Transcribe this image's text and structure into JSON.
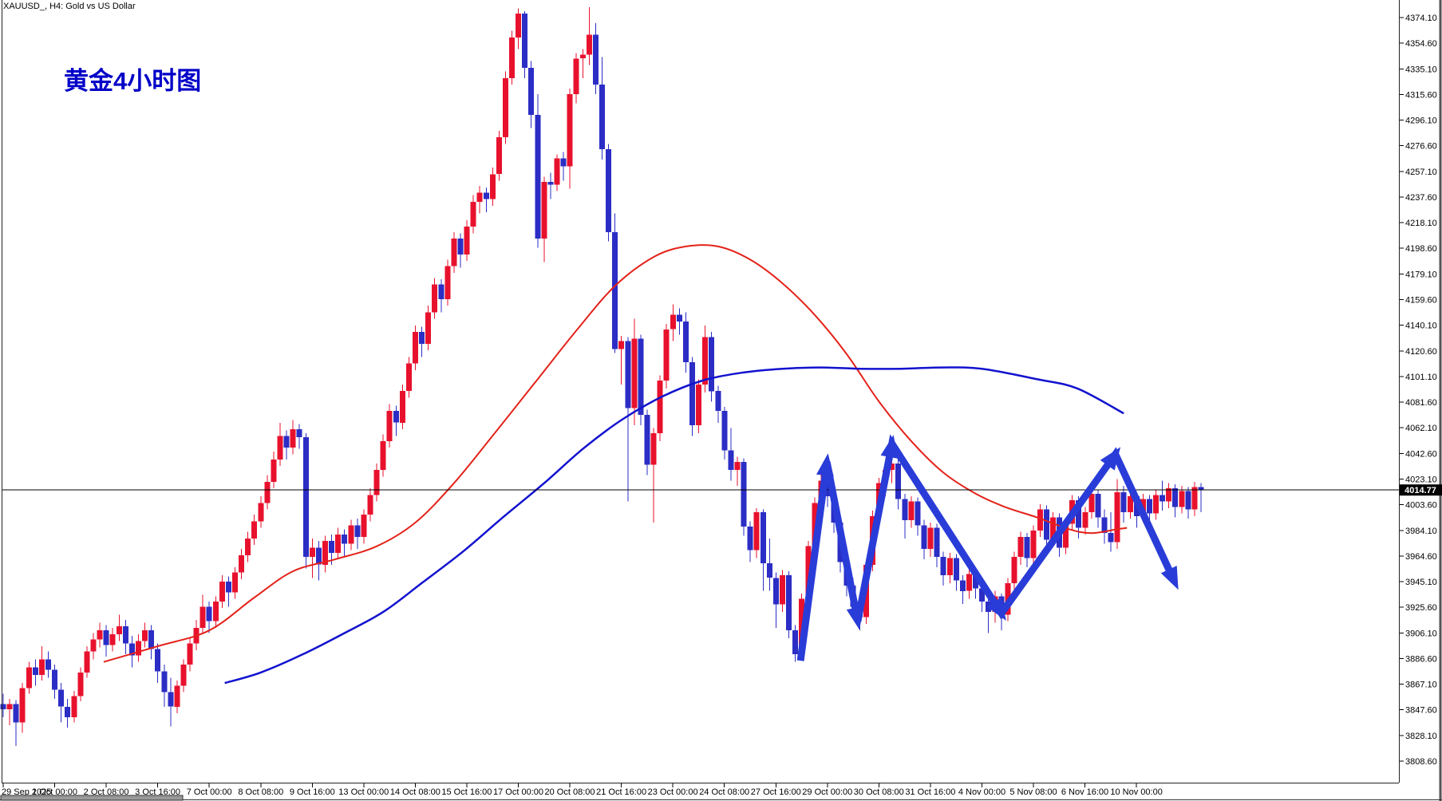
{
  "window": {
    "title": "XAUUSD_, H4:  Gold vs US Dollar",
    "annotation": "黄金4小时图",
    "bid_price": "4014.77"
  },
  "colors": {
    "background": "#ffffff",
    "bull_candle_red": "#e8112d",
    "bear_candle_blue": "#2b2dc5",
    "ma_fast_red": "#e32219",
    "ma_slow_blue": "#1212cf",
    "arrow_blue": "#2a3cd8",
    "axis_text": "#000000",
    "annotation_blue": "#0000c8",
    "bid_line": "#000000",
    "bid_tag_bg": "#000000",
    "bid_tag_text": "#ffffff",
    "border": "#222222",
    "scrollbar_thumb": "#9a9a9a"
  },
  "chart_data": {
    "type": "candlestick",
    "symbol": "XAUUSD_",
    "timeframe": "H4",
    "title": "XAUUSD_, H4:  Gold vs US Dollar",
    "grid": false,
    "legend_position": "none",
    "current_price": 4014.77,
    "y_axis": {
      "min": 3808.6,
      "max": 4374.1,
      "step": 19.5,
      "labels": [
        "4374.10",
        "4354.60",
        "4335.10",
        "4315.60",
        "4296.10",
        "4276.60",
        "4257.10",
        "4237.60",
        "4218.10",
        "4198.60",
        "4179.10",
        "4159.60",
        "4140.10",
        "4120.60",
        "4101.10",
        "4081.60",
        "4062.10",
        "4042.60",
        "4023.10",
        "4003.60",
        "3984.10",
        "3964.60",
        "3945.10",
        "3925.60",
        "3906.10",
        "3886.60",
        "3867.10",
        "3847.60",
        "3828.10",
        "3808.60"
      ]
    },
    "x_axis": {
      "bars_per_label": 8,
      "labels": [
        "29 Sep 2025",
        "1 Oct 00:00",
        "2 Oct 08:00",
        "3 Oct 16:00",
        "7 Oct 00:00",
        "8 Oct 08:00",
        "9 Oct 16:00",
        "13 Oct 00:00",
        "14 Oct 08:00",
        "15 Oct 16:00",
        "17 Oct 00:00",
        "20 Oct 08:00",
        "21 Oct 16:00",
        "23 Oct 00:00",
        "24 Oct 08:00",
        "27 Oct 16:00",
        "29 Oct 00:00",
        "30 Oct 08:00",
        "31 Oct 16:00",
        "4 Nov 00:00",
        "5 Nov 08:00",
        "6 Nov 16:00",
        "10 Nov 00:00"
      ]
    },
    "candles": [
      [
        3852,
        3860,
        3842,
        3848
      ],
      [
        3848,
        3856,
        3836,
        3852
      ],
      [
        3852,
        3855,
        3820,
        3838
      ],
      [
        3838,
        3868,
        3830,
        3864
      ],
      [
        3864,
        3884,
        3860,
        3880
      ],
      [
        3880,
        3886,
        3866,
        3874
      ],
      [
        3874,
        3896,
        3870,
        3886
      ],
      [
        3886,
        3892,
        3872,
        3878
      ],
      [
        3878,
        3882,
        3856,
        3863
      ],
      [
        3863,
        3868,
        3838,
        3850
      ],
      [
        3850,
        3856,
        3834,
        3842
      ],
      [
        3842,
        3862,
        3838,
        3858
      ],
      [
        3858,
        3880,
        3854,
        3876
      ],
      [
        3876,
        3896,
        3872,
        3892
      ],
      [
        3892,
        3906,
        3886,
        3901
      ],
      [
        3901,
        3914,
        3895,
        3908
      ],
      [
        3908,
        3912,
        3888,
        3897
      ],
      [
        3897,
        3910,
        3892,
        3905
      ],
      [
        3905,
        3920,
        3900,
        3911
      ],
      [
        3911,
        3916,
        3890,
        3898
      ],
      [
        3898,
        3904,
        3880,
        3889
      ],
      [
        3889,
        3905,
        3884,
        3900
      ],
      [
        3900,
        3914,
        3895,
        3908
      ],
      [
        3908,
        3912,
        3886,
        3894
      ],
      [
        3894,
        3898,
        3868,
        3877
      ],
      [
        3877,
        3882,
        3850,
        3861
      ],
      [
        3861,
        3872,
        3835,
        3850
      ],
      [
        3850,
        3870,
        3845,
        3866
      ],
      [
        3866,
        3886,
        3861,
        3882
      ],
      [
        3882,
        3902,
        3877,
        3898
      ],
      [
        3898,
        3916,
        3893,
        3910
      ],
      [
        3910,
        3935,
        3905,
        3926
      ],
      [
        3926,
        3930,
        3906,
        3915
      ],
      [
        3915,
        3934,
        3910,
        3930
      ],
      [
        3930,
        3950,
        3925,
        3945
      ],
      [
        3945,
        3949,
        3926,
        3937
      ],
      [
        3937,
        3956,
        3932,
        3952
      ],
      [
        3952,
        3970,
        3947,
        3965
      ],
      [
        3965,
        3983,
        3960,
        3978
      ],
      [
        3978,
        3996,
        3973,
        3991
      ],
      [
        3991,
        4010,
        3986,
        4005
      ],
      [
        4005,
        4026,
        4000,
        4021
      ],
      [
        4021,
        4044,
        4016,
        4038
      ],
      [
        4038,
        4066,
        4033,
        4056
      ],
      [
        4056,
        4060,
        4038,
        4047
      ],
      [
        4047,
        4068,
        4042,
        4061
      ],
      [
        4061,
        4065,
        4046,
        4055
      ],
      [
        4055,
        4058,
        3955,
        3964
      ],
      [
        3964,
        3978,
        3948,
        3971
      ],
      [
        3971,
        3976,
        3946,
        3958
      ],
      [
        3958,
        3980,
        3952,
        3976
      ],
      [
        3976,
        3981,
        3958,
        3967
      ],
      [
        3967,
        3986,
        3962,
        3981
      ],
      [
        3981,
        3985,
        3964,
        3974
      ],
      [
        3974,
        3992,
        3969,
        3988
      ],
      [
        3988,
        3993,
        3970,
        3979
      ],
      [
        3979,
        4000,
        3974,
        3996
      ],
      [
        3996,
        4016,
        3991,
        4011
      ],
      [
        4011,
        4035,
        4006,
        4030
      ],
      [
        4030,
        4057,
        4025,
        4052
      ],
      [
        4052,
        4080,
        4047,
        4075
      ],
      [
        4075,
        4079,
        4056,
        4066
      ],
      [
        4066,
        4095,
        4061,
        4090
      ],
      [
        4090,
        4116,
        4085,
        4111
      ],
      [
        4111,
        4140,
        4106,
        4135
      ],
      [
        4135,
        4139,
        4116,
        4126
      ],
      [
        4126,
        4155,
        4121,
        4150
      ],
      [
        4150,
        4176,
        4145,
        4171
      ],
      [
        4171,
        4175,
        4150,
        4160
      ],
      [
        4160,
        4190,
        4155,
        4185
      ],
      [
        4185,
        4211,
        4180,
        4206
      ],
      [
        4206,
        4210,
        4184,
        4194
      ],
      [
        4194,
        4220,
        4189,
        4215
      ],
      [
        4215,
        4239,
        4210,
        4234
      ],
      [
        4234,
        4246,
        4225,
        4241
      ],
      [
        4241,
        4245,
        4226,
        4236
      ],
      [
        4236,
        4260,
        4231,
        4255
      ],
      [
        4255,
        4288,
        4250,
        4283
      ],
      [
        4283,
        4333,
        4278,
        4328
      ],
      [
        4328,
        4364,
        4323,
        4359
      ],
      [
        4359,
        4381,
        4350,
        4377
      ],
      [
        4377,
        4379,
        4328,
        4336
      ],
      [
        4336,
        4341,
        4290,
        4300
      ],
      [
        4300,
        4316,
        4199,
        4206
      ],
      [
        4206,
        4253,
        4188,
        4249
      ],
      [
        4249,
        4256,
        4236,
        4247
      ],
      [
        4247,
        4270,
        4242,
        4267
      ],
      [
        4267,
        4272,
        4250,
        4261
      ],
      [
        4261,
        4320,
        4244,
        4316
      ],
      [
        4316,
        4347,
        4309,
        4343
      ],
      [
        4343,
        4350,
        4328,
        4346
      ],
      [
        4346,
        4382,
        4338,
        4361
      ],
      [
        4361,
        4370,
        4316,
        4323
      ],
      [
        4323,
        4344,
        4266,
        4274
      ],
      [
        4274,
        4278,
        4204,
        4211
      ],
      [
        4211,
        4225,
        4119,
        4122
      ],
      [
        4122,
        4132,
        4095,
        4128
      ],
      [
        4128,
        4131,
        4006,
        4077
      ],
      [
        4077,
        4145,
        4064,
        4130
      ],
      [
        4130,
        4133,
        4064,
        4072
      ],
      [
        4072,
        4076,
        4026,
        4034
      ],
      [
        4034,
        4062,
        3990,
        4058
      ],
      [
        4058,
        4102,
        4052,
        4098
      ],
      [
        4098,
        4141,
        4092,
        4137
      ],
      [
        4137,
        4156,
        4128,
        4148
      ],
      [
        4148,
        4153,
        4133,
        4143
      ],
      [
        4143,
        4150,
        4104,
        4112
      ],
      [
        4112,
        4116,
        4056,
        4064
      ],
      [
        4064,
        4099,
        4058,
        4095
      ],
      [
        4095,
        4140,
        4089,
        4131
      ],
      [
        4131,
        4135,
        4082,
        4090
      ],
      [
        4090,
        4094,
        4066,
        4075
      ],
      [
        4075,
        4078,
        4038,
        4045
      ],
      [
        4045,
        4062,
        4022,
        4030
      ],
      [
        4030,
        4040,
        4018,
        4036
      ],
      [
        4036,
        4039,
        3980,
        3987
      ],
      [
        3987,
        3991,
        3960,
        3969
      ],
      [
        3969,
        4001,
        3963,
        3998
      ],
      [
        3998,
        4000,
        3938,
        3959
      ],
      [
        3959,
        3978,
        3938,
        3948
      ],
      [
        3948,
        3952,
        3910,
        3928
      ],
      [
        3928,
        3954,
        3922,
        3950
      ],
      [
        3950,
        3953,
        3902,
        3908
      ],
      [
        3908,
        3912,
        3884,
        3890
      ],
      [
        3890,
        3936,
        3885,
        3932
      ],
      [
        3932,
        3976,
        3927,
        3972
      ],
      [
        3972,
        4009,
        3967,
        4005
      ],
      [
        4005,
        4028,
        3999,
        4022
      ],
      [
        4022,
        4035,
        4002,
        4010
      ],
      [
        4010,
        4014,
        3982,
        3990
      ],
      [
        3990,
        3994,
        3952,
        3960
      ],
      [
        3960,
        3972,
        3934,
        3942
      ],
      [
        3942,
        3948,
        3918,
        3926
      ],
      [
        3926,
        3932,
        3908,
        3918
      ],
      [
        3918,
        3962,
        3913,
        3958
      ],
      [
        3958,
        3999,
        3953,
        3995
      ],
      [
        3995,
        4024,
        3990,
        4020
      ],
      [
        4020,
        4034,
        4010,
        4030
      ],
      [
        4030,
        4040,
        4020,
        4035
      ],
      [
        4035,
        4038,
        4000,
        4008
      ],
      [
        4008,
        4012,
        3978,
        3992
      ],
      [
        3992,
        4010,
        3986,
        4006
      ],
      [
        4006,
        4009,
        3980,
        3988
      ],
      [
        3988,
        3992,
        3962,
        3970
      ],
      [
        3970,
        3990,
        3964,
        3986
      ],
      [
        3986,
        3989,
        3956,
        3964
      ],
      [
        3964,
        3968,
        3942,
        3950
      ],
      [
        3950,
        3967,
        3944,
        3963
      ],
      [
        3963,
        3966,
        3938,
        3946
      ],
      [
        3946,
        3950,
        3928,
        3938
      ],
      [
        3938,
        3955,
        3932,
        3951
      ],
      [
        3951,
        3954,
        3932,
        3940
      ],
      [
        3940,
        3944,
        3922,
        3930
      ],
      [
        3930,
        3936,
        3906,
        3922
      ],
      [
        3922,
        3938,
        3914,
        3934
      ],
      [
        3934,
        3936,
        3908,
        3920
      ],
      [
        3920,
        3948,
        3915,
        3944
      ],
      [
        3944,
        3968,
        3939,
        3964
      ],
      [
        3964,
        3983,
        3958,
        3979
      ],
      [
        3979,
        3982,
        3956,
        3963
      ],
      [
        3963,
        3988,
        3958,
        3984
      ],
      [
        3984,
        4004,
        3979,
        4000
      ],
      [
        4000,
        4003,
        3970,
        3977
      ],
      [
        3977,
        3998,
        3972,
        3994
      ],
      [
        3994,
        3997,
        3964,
        3971
      ],
      [
        3971,
        3993,
        3966,
        3989
      ],
      [
        3989,
        4011,
        3984,
        4007
      ],
      [
        4007,
        4010,
        3978,
        3986
      ],
      [
        3986,
        4002,
        3981,
        3998
      ],
      [
        3998,
        4016,
        3993,
        4012
      ],
      [
        4012,
        4015,
        3986,
        3994
      ],
      [
        3994,
        4000,
        3974,
        3982
      ],
      [
        3982,
        3998,
        3968,
        3975
      ],
      [
        3975,
        4023,
        3970,
        4013
      ],
      [
        4013,
        4018,
        3990,
        3998
      ],
      [
        3998,
        4014,
        3993,
        4010
      ],
      [
        4010,
        4013,
        3986,
        3995
      ],
      [
        3995,
        4012,
        3990,
        4008
      ],
      [
        4008,
        4011,
        3988,
        3997
      ],
      [
        3997,
        4015,
        3992,
        4011
      ],
      [
        4011,
        4022,
        3999,
        4006
      ],
      [
        4006,
        4020,
        4001,
        4016
      ],
      [
        4016,
        4019,
        3994,
        4002
      ],
      [
        4002,
        4018,
        3997,
        4014
      ],
      [
        4014,
        4017,
        3993,
        4000
      ],
      [
        4000,
        4021,
        3995,
        4017
      ],
      [
        4017,
        4020,
        3998,
        4014.8
      ]
    ],
    "ma_fast_red_points": [
      [
        15.6,
        3884
      ],
      [
        24,
        3896
      ],
      [
        32,
        3908
      ],
      [
        39,
        3933
      ],
      [
        45,
        3953
      ],
      [
        51.5,
        3962
      ],
      [
        58,
        3972
      ],
      [
        64,
        3990
      ],
      [
        70,
        4020
      ],
      [
        76,
        4056
      ],
      [
        82.5,
        4096
      ],
      [
        89,
        4136
      ],
      [
        95,
        4170
      ],
      [
        101,
        4192
      ],
      [
        106,
        4200
      ],
      [
        111,
        4200
      ],
      [
        116,
        4190
      ],
      [
        121,
        4172
      ],
      [
        126,
        4148
      ],
      [
        131,
        4118
      ],
      [
        136,
        4082
      ],
      [
        141,
        4052
      ],
      [
        146,
        4028
      ],
      [
        151,
        4012
      ],
      [
        155.5,
        4002
      ],
      [
        160.5,
        3994
      ],
      [
        165.5,
        3985
      ],
      [
        169,
        3982
      ],
      [
        173,
        3985
      ],
      [
        174.5,
        3986
      ]
    ],
    "ma_slow_blue_points": [
      [
        34.4,
        3868
      ],
      [
        40,
        3876
      ],
      [
        46.6,
        3890
      ],
      [
        53,
        3906
      ],
      [
        59,
        3922
      ],
      [
        65,
        3944
      ],
      [
        71.4,
        3968
      ],
      [
        77.6,
        3994
      ],
      [
        84,
        4020
      ],
      [
        90,
        4046
      ],
      [
        96,
        4068
      ],
      [
        102.4,
        4086
      ],
      [
        108.6,
        4098
      ],
      [
        114.7,
        4104
      ],
      [
        121,
        4107
      ],
      [
        127,
        4108
      ],
      [
        133,
        4107
      ],
      [
        139.5,
        4107
      ],
      [
        145.7,
        4108
      ],
      [
        152,
        4107
      ],
      [
        160.6,
        4099
      ],
      [
        166.8,
        4092
      ],
      [
        174,
        4073
      ]
    ],
    "annotation_arrows": {
      "vertices": [
        [
          123.8,
          3885
        ],
        [
          127.9,
          4036
        ],
        [
          132.7,
          3915
        ],
        [
          138.0,
          4050
        ],
        [
          155.0,
          3921
        ],
        [
          172.7,
          4042
        ],
        [
          181.9,
          3945
        ]
      ],
      "arrowhead_at": [
        1,
        2,
        3,
        4,
        5,
        6
      ]
    }
  }
}
